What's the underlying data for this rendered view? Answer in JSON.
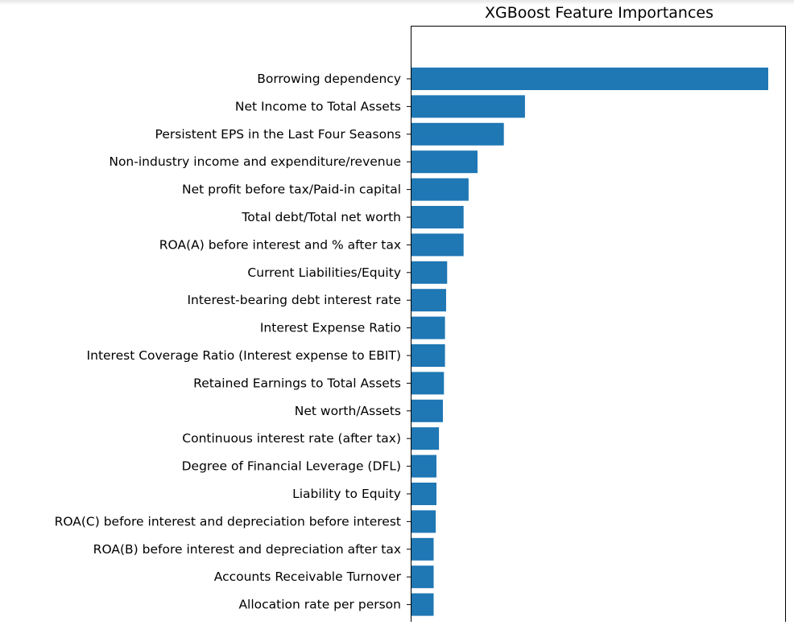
{
  "chart_data": {
    "type": "bar",
    "orientation": "horizontal",
    "title": "XGBoost Feature Importances",
    "xlabel": "",
    "ylabel": "",
    "categories": [
      "Borrowing dependency",
      "Net Income to Total Assets",
      "Persistent EPS in the Last Four Seasons",
      "Non-industry income and expenditure/revenue",
      "Net profit before tax/Paid-in capital",
      "Total debt/Total net worth",
      "ROA(A) before interest and % after tax",
      "Current Liabilities/Equity",
      "Interest-bearing debt interest rate",
      "Interest Expense Ratio",
      "Interest Coverage Ratio (Interest expense to EBIT)",
      "Retained Earnings to Total Assets",
      "Net worth/Assets",
      "Continuous interest rate (after tax)",
      "Degree of Financial Leverage (DFL)",
      "Liability to Equity",
      "ROA(C) before interest and depreciation before interest",
      "ROA(B) before interest and depreciation after tax",
      "Accounts Receivable Turnover",
      "Allocation rate per person"
    ],
    "values": [
      1.0,
      0.318,
      0.259,
      0.185,
      0.16,
      0.146,
      0.146,
      0.1,
      0.097,
      0.094,
      0.094,
      0.091,
      0.088,
      0.077,
      0.07,
      0.07,
      0.068,
      0.062,
      0.062,
      0.062
    ],
    "xlim": [
      0,
      1.05
    ],
    "bar_color": "#1f77b4",
    "grid": false,
    "legend": "none",
    "notes": "values are relative importance read from bar lengths; x-axis ticks not visible (chart cropped)"
  }
}
